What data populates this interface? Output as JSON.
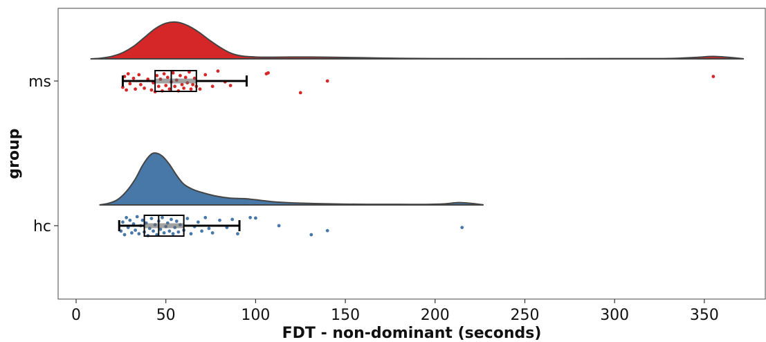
{
  "chart_data": {
    "type": "raincloud",
    "xlabel": "FDT - non-dominant (seconds)",
    "ylabel": "group",
    "xlim": [
      -10,
      385
    ],
    "xticks": [
      0,
      50,
      100,
      150,
      200,
      250,
      300,
      350
    ],
    "categories": [
      "ms",
      "hc"
    ],
    "grid": false,
    "series": [
      {
        "name": "ms",
        "color": "#d62728",
        "density_range": [
          8,
          372
        ],
        "density": [
          [
            8,
            0.0
          ],
          [
            14,
            0.02
          ],
          [
            20,
            0.07
          ],
          [
            26,
            0.17
          ],
          [
            32,
            0.34
          ],
          [
            38,
            0.58
          ],
          [
            44,
            0.82
          ],
          [
            50,
            0.97
          ],
          [
            56,
            1.0
          ],
          [
            62,
            0.91
          ],
          [
            68,
            0.74
          ],
          [
            74,
            0.52
          ],
          [
            80,
            0.32
          ],
          [
            86,
            0.16
          ],
          [
            92,
            0.08
          ],
          [
            100,
            0.05
          ],
          [
            110,
            0.045
          ],
          [
            125,
            0.05
          ],
          [
            140,
            0.045
          ],
          [
            160,
            0.03
          ],
          [
            180,
            0.015
          ],
          [
            200,
            0.008
          ],
          [
            250,
            0.005
          ],
          [
            300,
            0.006
          ],
          [
            330,
            0.01
          ],
          [
            345,
            0.04
          ],
          [
            355,
            0.065
          ],
          [
            365,
            0.035
          ],
          [
            372,
            0.0
          ]
        ],
        "box": {
          "whisker_low": 26,
          "q1": 44,
          "median": 53,
          "q3": 67,
          "whisker_high": 95
        },
        "points": [
          [
            26,
            0.7
          ],
          [
            27,
            -0.5
          ],
          [
            28,
            1.0
          ],
          [
            29,
            -0.8
          ],
          [
            30,
            0.3
          ],
          [
            32,
            -0.3
          ],
          [
            33,
            0.9
          ],
          [
            35,
            -0.7
          ],
          [
            36,
            0.4
          ],
          [
            38,
            0.8
          ],
          [
            40,
            -0.2
          ],
          [
            42,
            1.0
          ],
          [
            43,
            0.2
          ],
          [
            44,
            1.2
          ],
          [
            45,
            -0.6
          ],
          [
            46,
            0.6
          ],
          [
            47,
            -0.2
          ],
          [
            48,
            1.1
          ],
          [
            49,
            -0.8
          ],
          [
            50,
            0.5
          ],
          [
            51,
            -0.4
          ],
          [
            52,
            0.9
          ],
          [
            53,
            0.1
          ],
          [
            54,
            -0.9
          ],
          [
            55,
            0.6
          ],
          [
            56,
            -0.1
          ],
          [
            57,
            1.1
          ],
          [
            58,
            -0.6
          ],
          [
            59,
            0.4
          ],
          [
            60,
            0.8
          ],
          [
            61,
            -0.4
          ],
          [
            62,
            0.2
          ],
          [
            63,
            -1.0
          ],
          [
            64,
            0.9
          ],
          [
            65,
            0.4
          ],
          [
            66,
            -0.3
          ],
          [
            67,
            0.6
          ],
          [
            69,
            0.9
          ],
          [
            72,
            -0.7
          ],
          [
            76,
            0.6
          ],
          [
            79,
            -1.1
          ],
          [
            83,
            0.1
          ],
          [
            86,
            0.5
          ],
          [
            106,
            -0.8
          ],
          [
            107,
            -0.9
          ],
          [
            125,
            1.3
          ],
          [
            140,
            0.0
          ],
          [
            355,
            -0.5
          ]
        ]
      },
      {
        "name": "hc",
        "color": "#4878a8",
        "density_range": [
          13,
          227
        ],
        "density": [
          [
            13,
            0.0
          ],
          [
            18,
            0.03
          ],
          [
            23,
            0.1
          ],
          [
            28,
            0.26
          ],
          [
            33,
            0.5
          ],
          [
            37,
            0.76
          ],
          [
            41,
            0.95
          ],
          [
            44,
            1.0
          ],
          [
            48,
            0.94
          ],
          [
            52,
            0.78
          ],
          [
            56,
            0.57
          ],
          [
            60,
            0.4
          ],
          [
            65,
            0.3
          ],
          [
            70,
            0.24
          ],
          [
            78,
            0.17
          ],
          [
            86,
            0.13
          ],
          [
            94,
            0.12
          ],
          [
            100,
            0.1
          ],
          [
            110,
            0.06
          ],
          [
            120,
            0.04
          ],
          [
            135,
            0.025
          ],
          [
            150,
            0.015
          ],
          [
            165,
            0.012
          ],
          [
            180,
            0.012
          ],
          [
            195,
            0.01
          ],
          [
            205,
            0.02
          ],
          [
            213,
            0.045
          ],
          [
            220,
            0.03
          ],
          [
            227,
            0.0
          ]
        ],
        "box": {
          "whisker_low": 24,
          "q1": 38,
          "median": 46,
          "q3": 60,
          "whisker_high": 91
        },
        "points": [
          [
            25,
            0.6
          ],
          [
            26,
            -0.4
          ],
          [
            27,
            1.0
          ],
          [
            28,
            -0.9
          ],
          [
            29,
            0.2
          ],
          [
            30,
            -0.6
          ],
          [
            31,
            0.8
          ],
          [
            32,
            -0.2
          ],
          [
            33,
            0.5
          ],
          [
            34,
            -1.0
          ],
          [
            35,
            0.9
          ],
          [
            36,
            0.0
          ],
          [
            37,
            -0.6
          ],
          [
            38,
            0.7
          ],
          [
            39,
            -0.3
          ],
          [
            40,
            1.1
          ],
          [
            41,
            0.3
          ],
          [
            42,
            -0.8
          ],
          [
            43,
            0.6
          ],
          [
            44,
            -0.1
          ],
          [
            45,
            1.0
          ],
          [
            46,
            -0.5
          ],
          [
            47,
            0.4
          ],
          [
            48,
            -0.9
          ],
          [
            49,
            0.8
          ],
          [
            50,
            0.1
          ],
          [
            51,
            -0.3
          ],
          [
            52,
            0.6
          ],
          [
            53,
            -0.7
          ],
          [
            54,
            0.9
          ],
          [
            55,
            0.2
          ],
          [
            56,
            -0.5
          ],
          [
            57,
            0.7
          ],
          [
            58,
            -0.1
          ],
          [
            60,
            0.5
          ],
          [
            62,
            -0.8
          ],
          [
            64,
            0.9
          ],
          [
            66,
            0.1
          ],
          [
            68,
            -0.4
          ],
          [
            70,
            0.6
          ],
          [
            72,
            -0.9
          ],
          [
            74,
            0.3
          ],
          [
            76,
            0.8
          ],
          [
            80,
            -0.6
          ],
          [
            84,
            0.2
          ],
          [
            87,
            -0.7
          ],
          [
            90,
            0.9
          ],
          [
            97,
            -0.9
          ],
          [
            100,
            -0.85
          ],
          [
            113,
            0.0
          ],
          [
            131,
            1.0
          ],
          [
            140,
            0.55
          ],
          [
            215,
            0.2
          ]
        ]
      }
    ]
  }
}
